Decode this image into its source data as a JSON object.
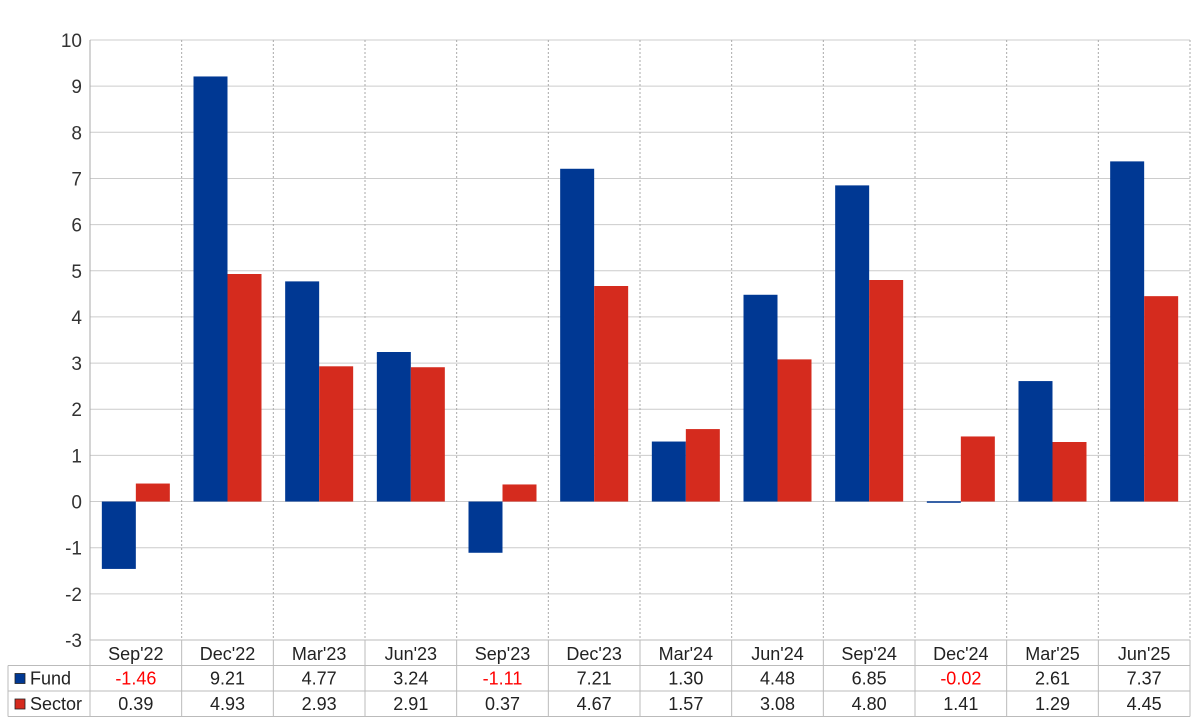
{
  "chart_data": {
    "type": "bar",
    "categories": [
      "Sep'22",
      "Dec'22",
      "Mar'23",
      "Jun'23",
      "Sep'23",
      "Dec'23",
      "Mar'24",
      "Jun'24",
      "Sep'24",
      "Dec'24",
      "Mar'25",
      "Jun'25"
    ],
    "series": [
      {
        "name": "Fund",
        "color": "#003893",
        "values": [
          -1.46,
          9.21,
          4.77,
          3.24,
          -1.11,
          7.21,
          1.3,
          4.48,
          6.85,
          -0.02,
          2.61,
          7.37
        ],
        "labels": [
          "-1.46",
          "9.21",
          "4.77",
          "3.24",
          "-1.11",
          "7.21",
          "1.30",
          "4.48",
          "6.85",
          "-0.02",
          "2.61",
          "7.37"
        ]
      },
      {
        "name": "Sector",
        "color": "#d52b1e",
        "values": [
          0.39,
          4.93,
          2.93,
          2.91,
          0.37,
          4.67,
          1.57,
          3.08,
          4.8,
          1.41,
          1.29,
          4.45
        ],
        "labels": [
          "0.39",
          "4.93",
          "2.93",
          "2.91",
          "0.37",
          "4.67",
          "1.57",
          "3.08",
          "4.80",
          "1.41",
          "1.29",
          "4.45"
        ]
      }
    ],
    "yticks": [
      "10",
      "9",
      "8",
      "7",
      "6",
      "5",
      "4",
      "3",
      "2",
      "1",
      "0",
      "-1",
      "-2",
      "-3"
    ],
    "ylim": [
      -3,
      10
    ],
    "grid": true,
    "legend": "data-table-bottom",
    "negative_label_color": "#ff0000"
  }
}
